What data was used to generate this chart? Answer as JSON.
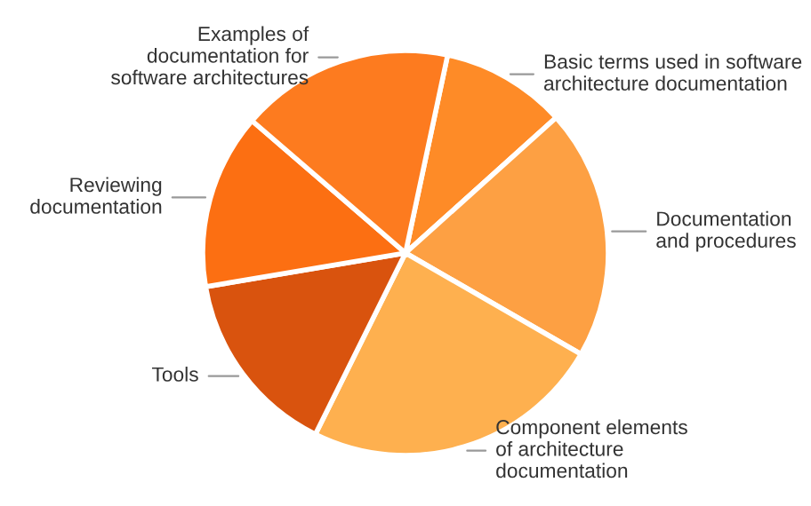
{
  "chart_data": {
    "type": "pie",
    "categories": [
      "Basic terms used in software\narchitecture documentation",
      "Documentation\nand procedures",
      "Component elements\nof architecture\ndocumentation",
      "Tools",
      "Reviewing\ndocumentation",
      "Examples of\ndocumentation for\nsoftware architectures"
    ],
    "values": [
      10,
      20,
      24,
      15,
      14,
      17
    ],
    "colors": [
      "#fe8b27",
      "#fda043",
      "#feb04f",
      "#d9530e",
      "#fc6f12",
      "#fd7b1f"
    ]
  }
}
